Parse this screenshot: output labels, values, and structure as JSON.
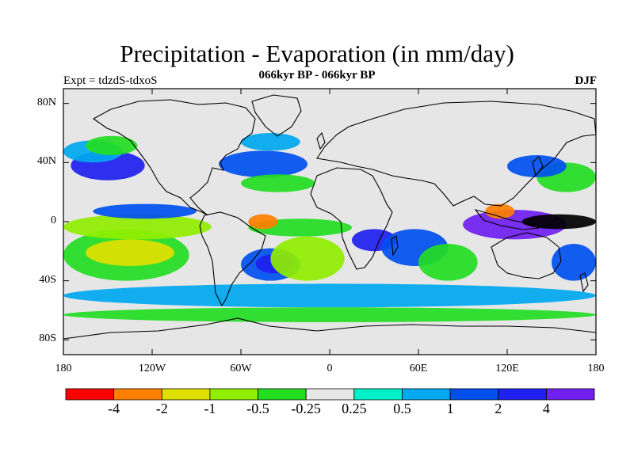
{
  "title": "Precipitation - Evaporation (in mm/day)",
  "subtitle": "066kyr BP - 066kyr BP",
  "experiment": "Expt = tdzdS-tdxoS",
  "season": "DJF",
  "map": {
    "projection": "cylindrical-equidistant",
    "lon_range": [
      -180,
      180
    ],
    "lat_range": [
      -90,
      90
    ],
    "lat_ticks": [
      {
        "value": 80,
        "label": "80N"
      },
      {
        "value": 40,
        "label": "40N"
      },
      {
        "value": 0,
        "label": "0"
      },
      {
        "value": -40,
        "label": "40S"
      },
      {
        "value": -80,
        "label": "80S"
      }
    ],
    "lon_ticks": [
      {
        "value": -180,
        "label": "180"
      },
      {
        "value": -120,
        "label": "120W"
      },
      {
        "value": -60,
        "label": "60W"
      },
      {
        "value": 0,
        "label": "0"
      },
      {
        "value": 60,
        "label": "60E"
      },
      {
        "value": 120,
        "label": "120E"
      },
      {
        "value": 180,
        "label": "180"
      }
    ],
    "background_color": "#e6e6e6",
    "field_regions": [
      {
        "lon": [
          -180,
          -95
        ],
        "lat": [
          -40,
          -5
        ],
        "level": 4
      },
      {
        "lon": [
          -165,
          -105
        ],
        "lat": [
          -30,
          -12
        ],
        "level": 2
      },
      {
        "lon": [
          -180,
          -80
        ],
        "lat": [
          -12,
          5
        ],
        "level": 3
      },
      {
        "lon": [
          -160,
          -90
        ],
        "lat": [
          2,
          12
        ],
        "level": 8
      },
      {
        "lon": [
          -180,
          -80
        ],
        "lat": [
          12,
          22
        ],
        "level": 5
      },
      {
        "lon": [
          -175,
          -125
        ],
        "lat": [
          28,
          48
        ],
        "level": 9
      },
      {
        "lon": [
          -180,
          -140
        ],
        "lat": [
          40,
          55
        ],
        "level": 7
      },
      {
        "lon": [
          -165,
          -130
        ],
        "lat": [
          45,
          58
        ],
        "level": 4
      },
      {
        "lon": [
          -75,
          -15
        ],
        "lat": [
          30,
          48
        ],
        "level": 8
      },
      {
        "lon": [
          -60,
          -20
        ],
        "lat": [
          48,
          60
        ],
        "level": 7
      },
      {
        "lon": [
          -60,
          -10
        ],
        "lat": [
          20,
          32
        ],
        "level": 4
      },
      {
        "lon": [
          -55,
          15
        ],
        "lat": [
          -10,
          2
        ],
        "level": 4
      },
      {
        "lon": [
          -55,
          -35
        ],
        "lat": [
          -5,
          5
        ],
        "level": 1
      },
      {
        "lon": [
          -60,
          -20
        ],
        "lat": [
          -40,
          -18
        ],
        "level": 8
      },
      {
        "lon": [
          -50,
          -25
        ],
        "lat": [
          -35,
          -22
        ],
        "level": 9
      },
      {
        "lon": [
          -40,
          10
        ],
        "lat": [
          -40,
          -10
        ],
        "level": 3
      },
      {
        "lon": [
          15,
          45
        ],
        "lat": [
          -20,
          -5
        ],
        "level": 9
      },
      {
        "lon": [
          35,
          80
        ],
        "lat": [
          -30,
          -5
        ],
        "level": 8
      },
      {
        "lon": [
          60,
          100
        ],
        "lat": [
          -40,
          -15
        ],
        "level": 4
      },
      {
        "lon": [
          90,
          160
        ],
        "lat": [
          -12,
          8
        ],
        "level": 10
      },
      {
        "lon": [
          130,
          180
        ],
        "lat": [
          -5,
          5
        ],
        "level": 11
      },
      {
        "lon": [
          105,
          125
        ],
        "lat": [
          2,
          12
        ],
        "level": 1
      },
      {
        "lon": [
          140,
          180
        ],
        "lat": [
          20,
          40
        ],
        "level": 4
      },
      {
        "lon": [
          120,
          160
        ],
        "lat": [
          30,
          45
        ],
        "level": 8
      },
      {
        "lon": [
          150,
          180
        ],
        "lat": [
          -40,
          -15
        ],
        "level": 8
      },
      {
        "lon": [
          -180,
          180
        ],
        "lat": [
          -58,
          -42
        ],
        "level": 7
      },
      {
        "lon": [
          -180,
          180
        ],
        "lat": [
          -68,
          -58
        ],
        "level": 4
      }
    ]
  },
  "colorbar": {
    "colors": [
      "#ff0000",
      "#ff7f00",
      "#e0e000",
      "#90ee00",
      "#22dd22",
      "#e6e6e6",
      "#00f0c8",
      "#00a8f0",
      "#0050f0",
      "#2020f0",
      "#7020f0"
    ],
    "labels": [
      "-4",
      "-2",
      "-1",
      "-0.5",
      "-0.25",
      "0.25",
      "0.5",
      "1",
      "2",
      "4"
    ]
  }
}
